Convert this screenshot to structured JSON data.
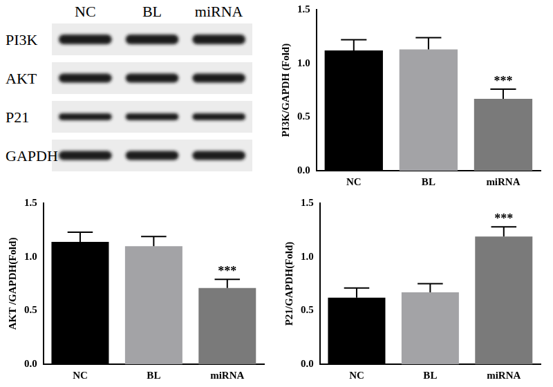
{
  "blot": {
    "lanes": [
      "NC",
      "BL",
      "miRNA"
    ],
    "rows": [
      "PI3K",
      "AKT",
      "P21",
      "GAPDH"
    ]
  },
  "chart_data": [
    {
      "type": "bar",
      "categories": [
        "NC",
        "BL",
        "miRNA"
      ],
      "values": [
        1.12,
        1.13,
        0.67
      ],
      "errors": [
        0.1,
        0.11,
        0.09
      ],
      "colors": [
        "#000000",
        "#a3a3a6",
        "#7a7a7a"
      ],
      "y_label": "PI3K/GAPDH (Fold)",
      "ylim": [
        0,
        1.5
      ],
      "yticks": [
        {
          "value": 0,
          "label": "0.0"
        },
        0.5,
        {
          "value": 1,
          "label": "1.0"
        },
        1.5
      ],
      "grid": false,
      "annotations": [
        {
          "category": "miRNA",
          "text": "***"
        }
      ]
    },
    {
      "type": "bar",
      "categories": [
        "NC",
        "BL",
        "miRNA"
      ],
      "values": [
        1.14,
        1.1,
        0.71
      ],
      "errors": [
        0.09,
        0.09,
        0.08
      ],
      "colors": [
        "#000000",
        "#a3a3a6",
        "#7a7a7a"
      ],
      "y_label": "AKT /GAPDH(Fold)",
      "ylim": [
        0,
        1.5
      ],
      "yticks": [
        {
          "value": 0,
          "label": "0.0"
        },
        0.5,
        {
          "value": 1,
          "label": "1.0"
        },
        1.5
      ],
      "grid": false,
      "annotations": [
        {
          "category": "miRNA",
          "text": "***"
        }
      ]
    },
    {
      "type": "bar",
      "categories": [
        "NC",
        "BL",
        "miRNA"
      ],
      "values": [
        0.62,
        0.67,
        1.19
      ],
      "errors": [
        0.09,
        0.08,
        0.09
      ],
      "colors": [
        "#000000",
        "#a3a3a6",
        "#7a7a7a"
      ],
      "y_label": "P21/GAPDH(Fold)",
      "ylim": [
        0,
        1.5
      ],
      "yticks": [
        {
          "value": 0,
          "label": "0.0"
        },
        0.5,
        {
          "value": 1,
          "label": "1.0"
        },
        1.5
      ],
      "grid": false,
      "annotations": [
        {
          "category": "miRNA",
          "text": "***"
        }
      ]
    }
  ]
}
